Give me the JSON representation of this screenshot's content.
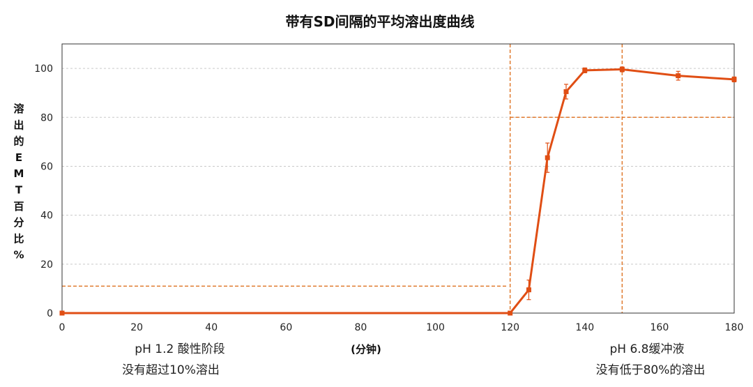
{
  "chart_data": {
    "type": "line",
    "title": "带有SD间隔的平均溶出度曲线",
    "xlabel": "(分钟)",
    "ylabel_chars": [
      "溶",
      "出",
      "的",
      "E",
      "M",
      "T",
      "百",
      "分",
      "比",
      "%"
    ],
    "xlim": [
      0,
      180
    ],
    "ylim": [
      0,
      110
    ],
    "xticks": [
      0,
      20,
      40,
      60,
      80,
      100,
      120,
      140,
      160,
      180
    ],
    "yticks": [
      0,
      20,
      40,
      60,
      80,
      100
    ],
    "grid": "horizontal dashed",
    "series": [
      {
        "x": [
          0,
          120,
          125,
          130,
          135,
          140,
          150,
          165,
          180
        ],
        "y": [
          0,
          0,
          9.5,
          63.5,
          90.5,
          99.2,
          99.6,
          97.0,
          95.5
        ],
        "sd": [
          0,
          0,
          4.0,
          6.0,
          3.0,
          1.0,
          1.0,
          1.8,
          1.0
        ],
        "color": "#e04e14"
      }
    ],
    "reference_lines": [
      {
        "orientation": "vertical",
        "x": 120,
        "color": "#e07a2e"
      },
      {
        "orientation": "vertical",
        "x": 150,
        "color": "#e07a2e"
      },
      {
        "orientation": "horizontal",
        "y": 11,
        "x_range": [
          0,
          119.5
        ],
        "color": "#e07a2e"
      },
      {
        "orientation": "horizontal",
        "y": 80,
        "x_range": [
          120,
          180
        ],
        "color": "#e07a2e"
      }
    ],
    "annotations": {
      "acid_stage_line1": "pH 1.2 酸性阶段",
      "acid_stage_line2": "没有超过10%溶出",
      "buffer_stage_line1": "pH 6.8缓冲液",
      "buffer_stage_line2": "没有低于80%的溶出"
    }
  }
}
